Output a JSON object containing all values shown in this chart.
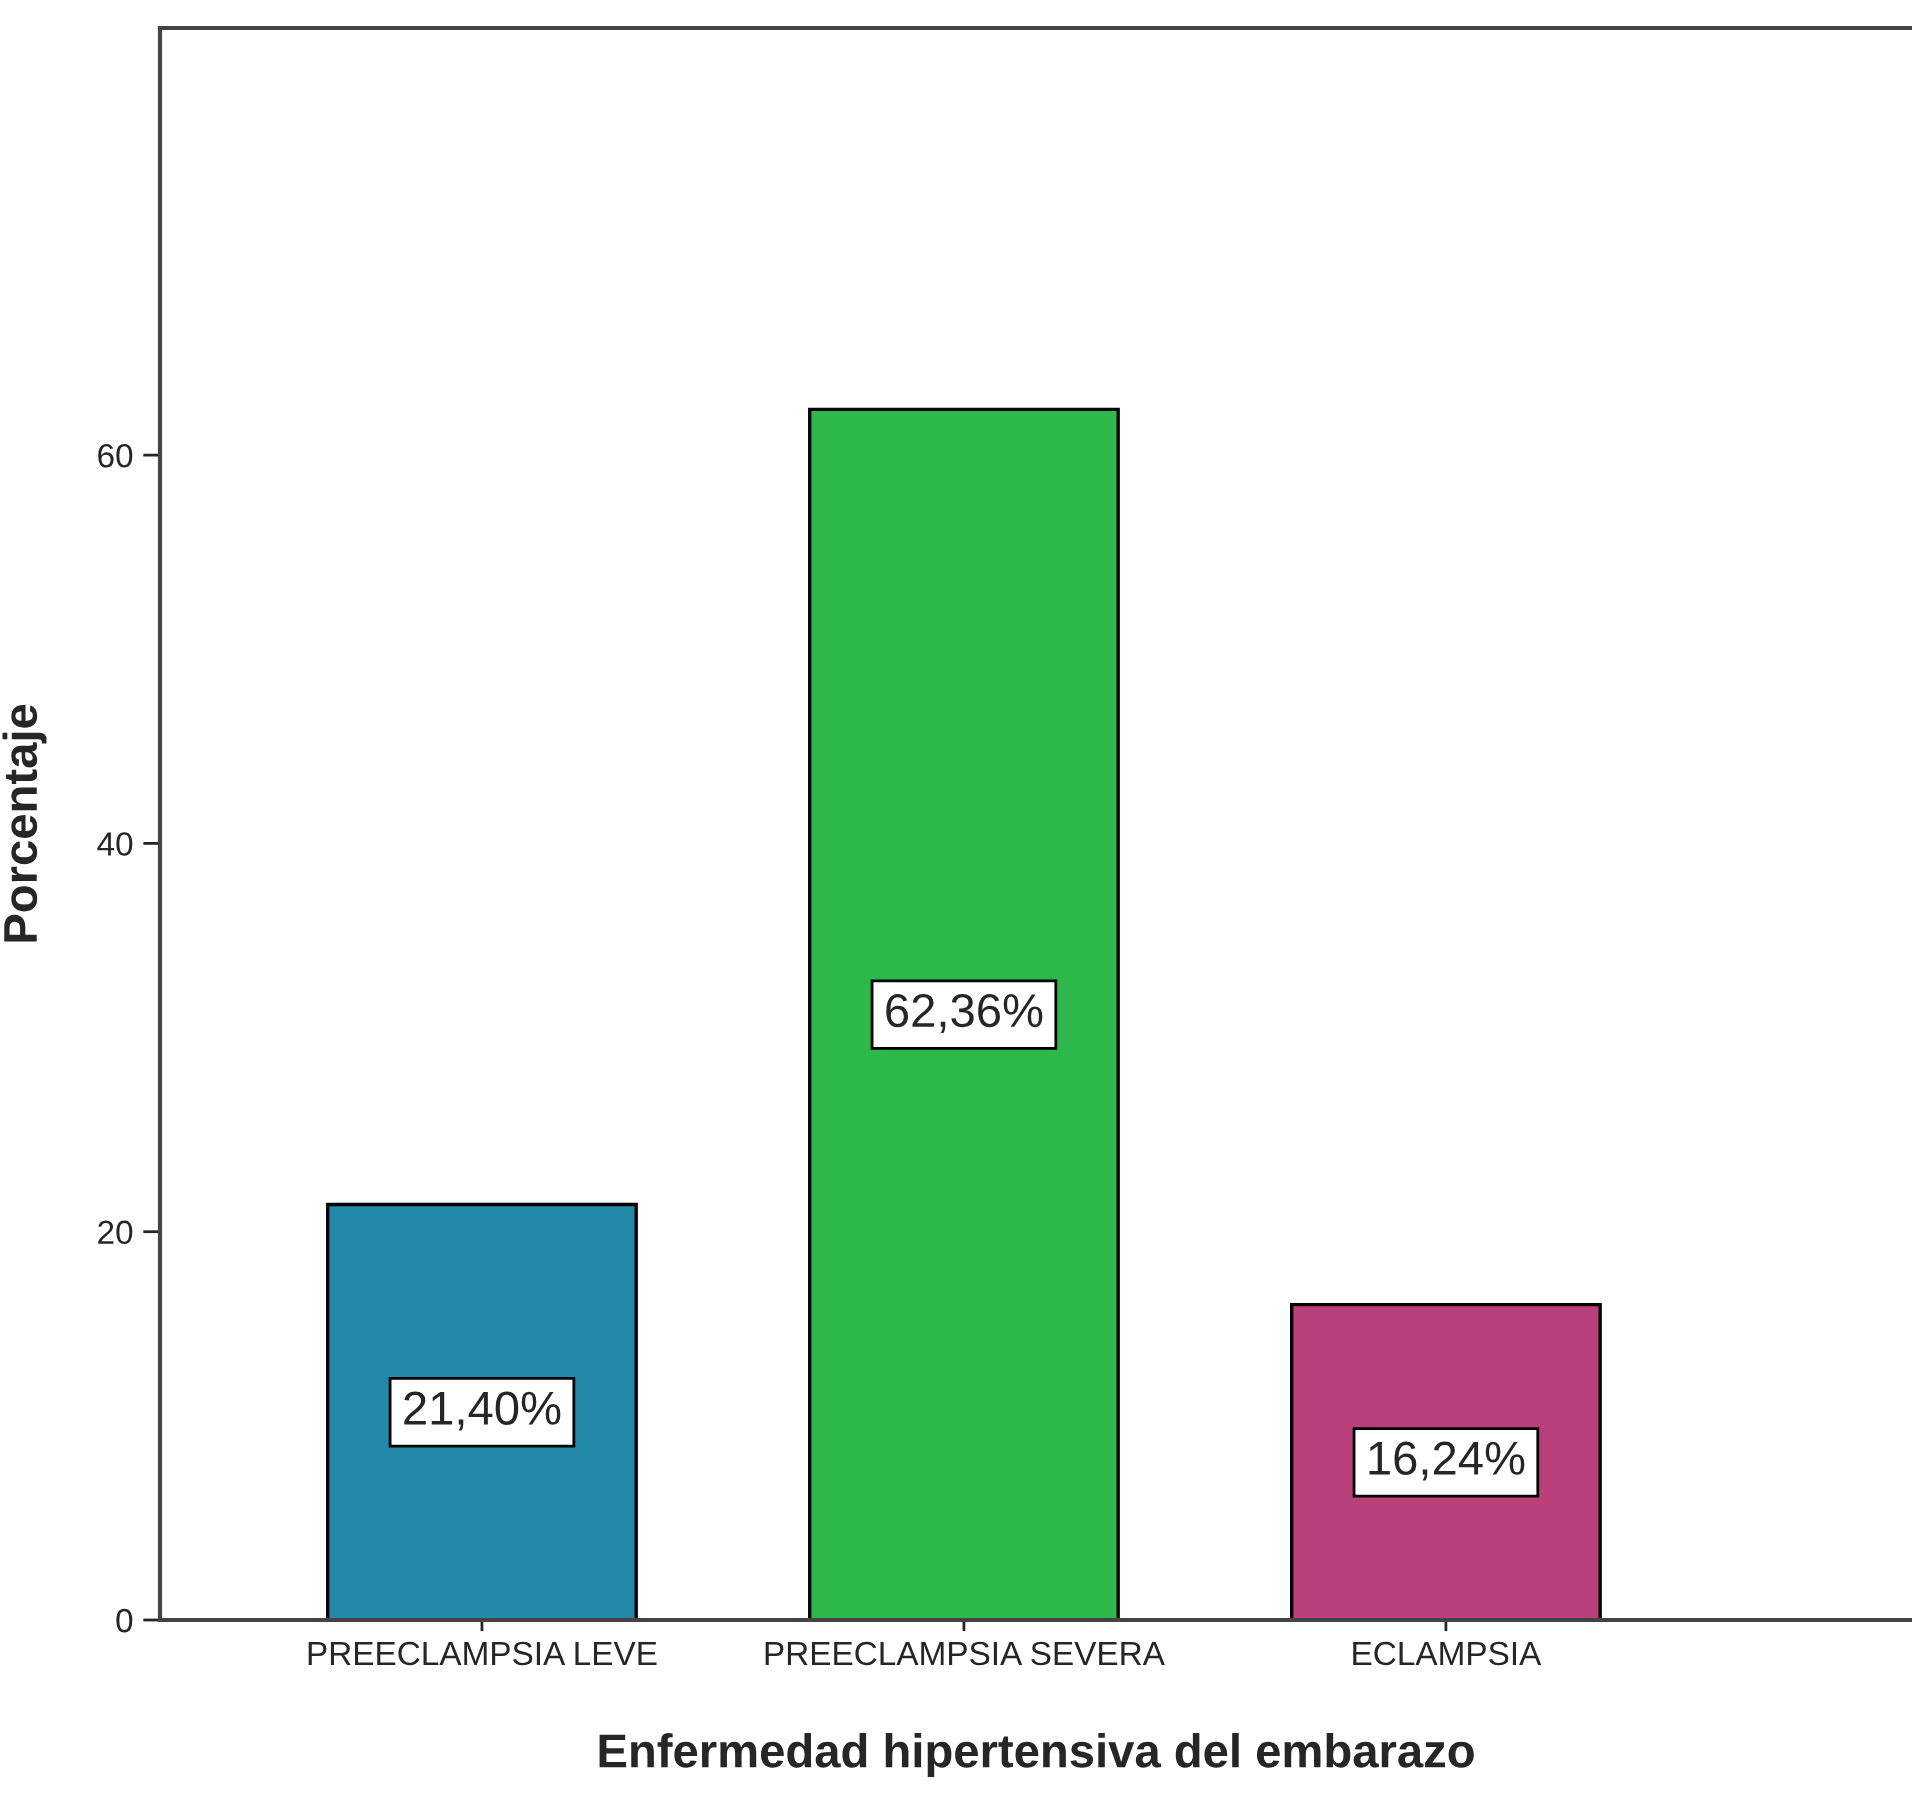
{
  "chart_data": {
    "type": "bar",
    "xlabel": "Enfermedad hipertensiva del embarazo",
    "ylabel": "Porcentaje",
    "categories": [
      "PREECLAMPSIA LEVE",
      "PREECLAMPSIA SEVERA",
      "ECLAMPSIA"
    ],
    "values": [
      21.4,
      62.36,
      16.24
    ],
    "colors": [
      "#2389a8",
      "#2db84b",
      "#b9407b"
    ],
    "value_labels": [
      "21,40%",
      "62,36%",
      "16,24%"
    ],
    "ylim": [
      0,
      82
    ],
    "yticks": [
      0,
      20,
      40,
      60
    ],
    "grid": false,
    "legend": false
  }
}
